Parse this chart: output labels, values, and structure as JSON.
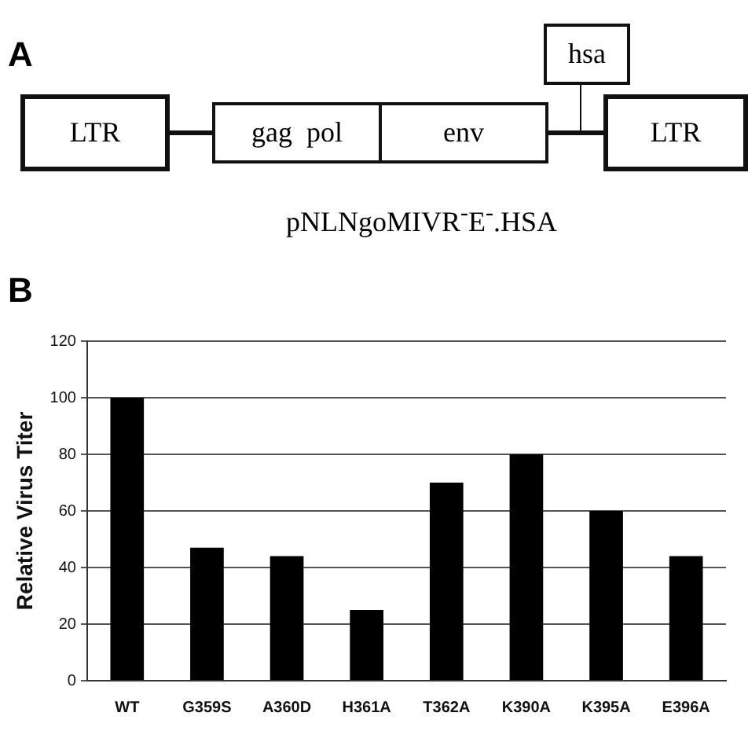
{
  "chart_data": {
    "type": "bar",
    "ylabel": "Relative Virus Titer",
    "categories": [
      "WT",
      "G359S",
      "A360D",
      "H361A",
      "T362A",
      "K390A",
      "K395A",
      "E396A"
    ],
    "values": [
      100,
      47,
      44,
      25,
      70,
      80,
      60,
      44
    ],
    "color": "#000000",
    "ylim": [
      0,
      120
    ],
    "yticks": [
      0,
      20,
      40,
      60,
      80,
      100,
      120
    ],
    "grid": "y",
    "legend": false,
    "annotations": [
      "A",
      "LTR",
      "gag  pol",
      "env",
      "hsa",
      "LTR",
      "pNLNgoMIVR$^{-}$E$^{-}$.HSA",
      "B"
    ]
  }
}
